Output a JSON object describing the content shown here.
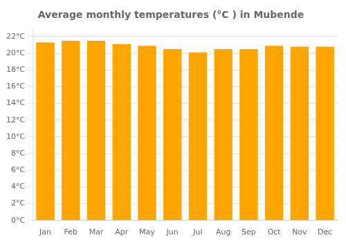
{
  "chart_data": {
    "type": "bar",
    "title": "Average monthly temperatures (°C ) in Mubende",
    "categories": [
      "Jan",
      "Feb",
      "Mar",
      "Apr",
      "May",
      "Jun",
      "Jul",
      "Aug",
      "Sep",
      "Oct",
      "Nov",
      "Dec"
    ],
    "values": [
      21.3,
      21.5,
      21.5,
      21.1,
      20.9,
      20.5,
      20.1,
      20.5,
      20.5,
      20.9,
      20.8,
      20.8
    ],
    "color": "#FFA500",
    "ylim": [
      0,
      23
    ],
    "yticks": [
      {
        "value": 0,
        "label": "0°C"
      },
      {
        "value": 2,
        "label": "2°C"
      },
      {
        "value": 4,
        "label": "4°C"
      },
      {
        "value": 6,
        "label": "6°C"
      },
      {
        "value": 8,
        "label": "8°C"
      },
      {
        "value": 10,
        "label": "10°C"
      },
      {
        "value": 12,
        "label": "12°C"
      },
      {
        "value": 14,
        "label": "14°C"
      },
      {
        "value": 16,
        "label": "16°C"
      },
      {
        "value": 18,
        "label": "18°C"
      },
      {
        "value": 20,
        "label": "20°C"
      },
      {
        "value": 22,
        "label": "22°C"
      }
    ],
    "grid": true
  }
}
